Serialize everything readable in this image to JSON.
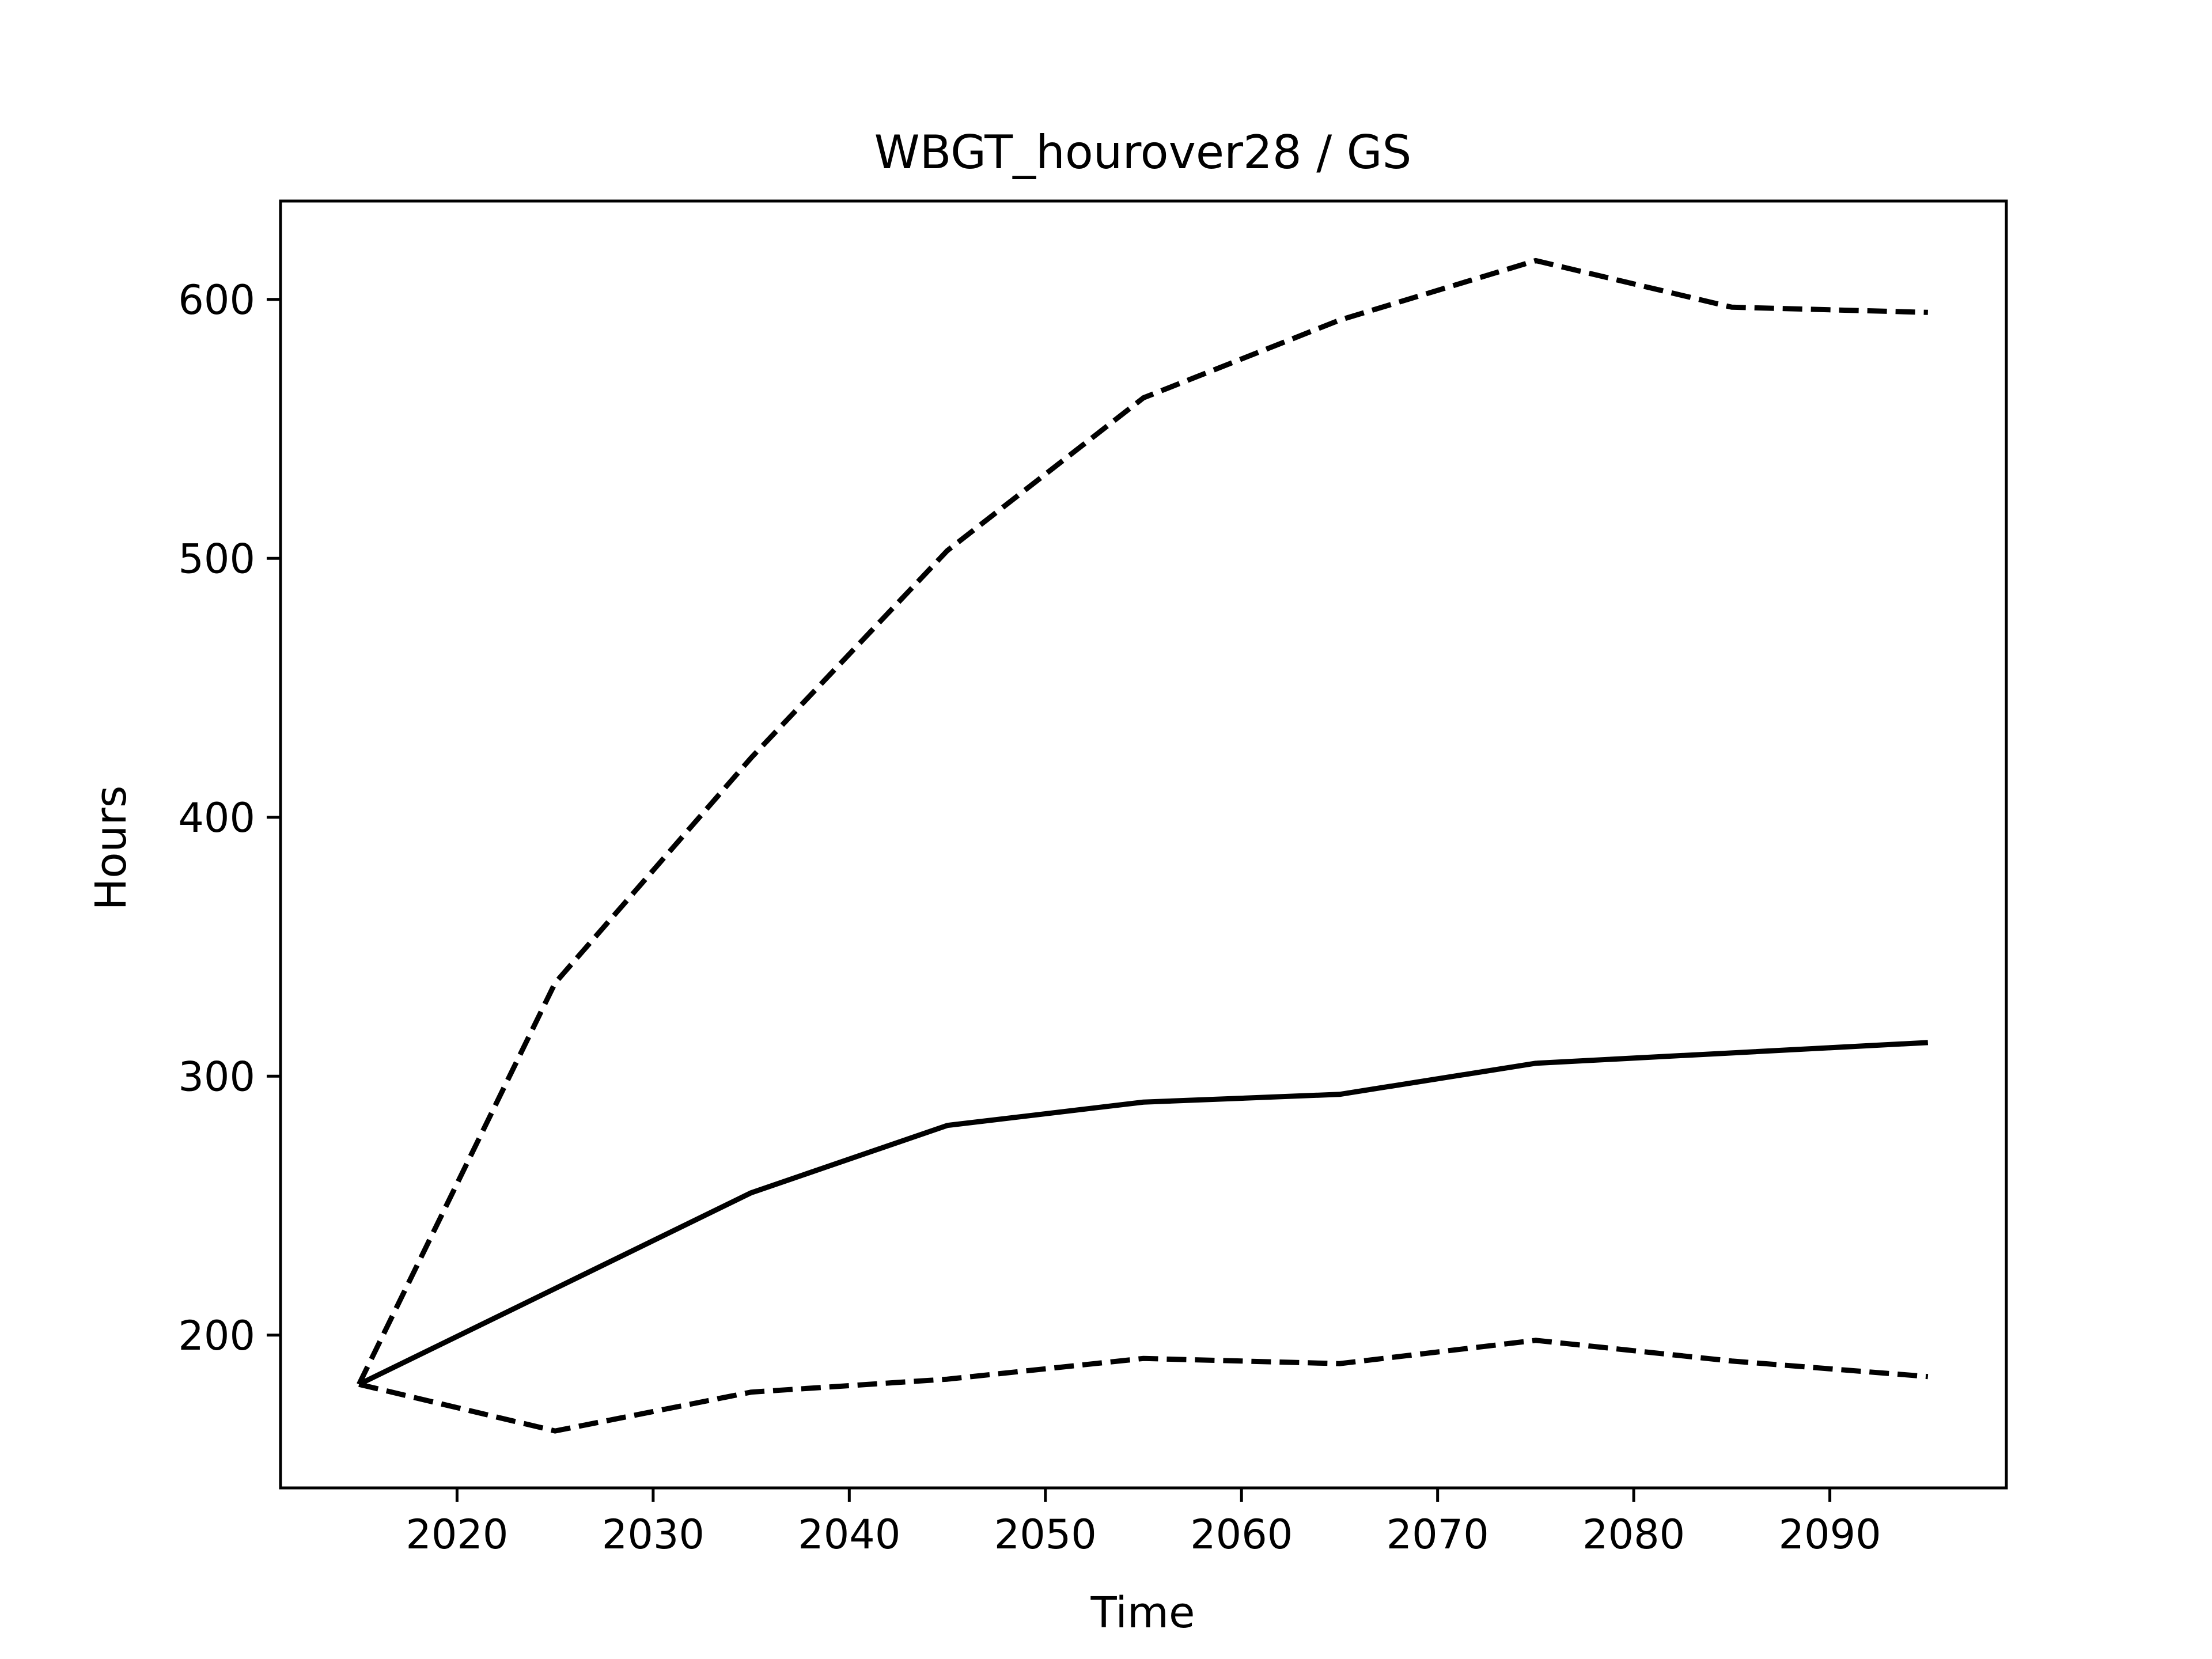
{
  "chart_data": {
    "type": "line",
    "title": "WBGT_hourover28 / GS",
    "xlabel": "Time",
    "ylabel": "Hours",
    "x": [
      2015,
      2025,
      2035,
      2045,
      2055,
      2065,
      2075,
      2085,
      2095
    ],
    "xlim": [
      2011,
      2099
    ],
    "ylim": [
      141,
      638
    ],
    "xticks": [
      2020,
      2030,
      2040,
      2050,
      2060,
      2070,
      2080,
      2090
    ],
    "yticks": [
      200,
      300,
      400,
      500,
      600
    ],
    "grid": false,
    "legend": "none",
    "series": [
      {
        "values": [
          181,
          218,
          255,
          281,
          290,
          293,
          305,
          309,
          313
        ],
        "style": "solid",
        "color": "#000000"
      },
      {
        "values": [
          181,
          336,
          423,
          503,
          562,
          592,
          615,
          597,
          595
        ],
        "style": "dashed",
        "color": "#000000"
      },
      {
        "values": [
          181,
          163,
          178,
          183,
          191,
          189,
          198,
          190,
          184
        ],
        "style": "dashed",
        "color": "#000000"
      }
    ]
  }
}
